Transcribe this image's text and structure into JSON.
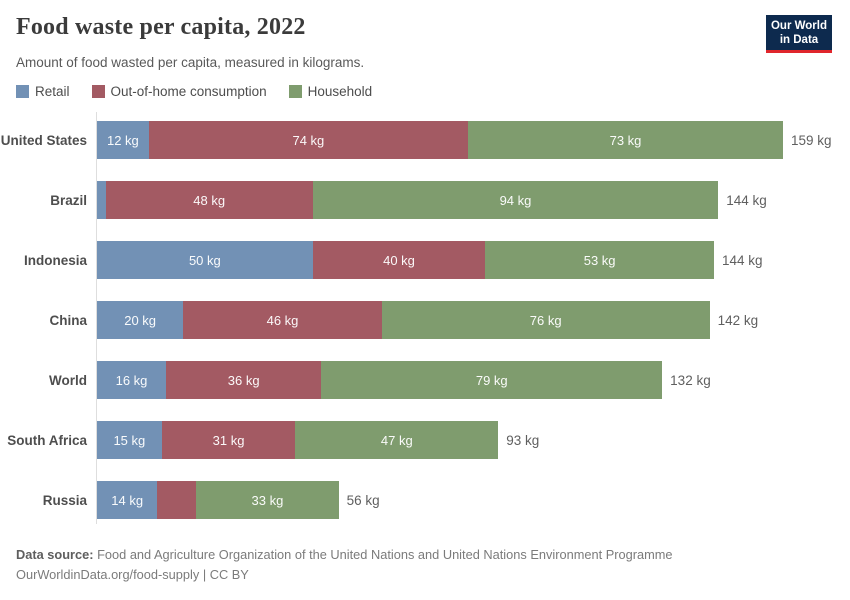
{
  "header": {
    "title": "Food waste per capita, 2022",
    "subtitle": "Amount of food wasted per capita, measured in kilograms."
  },
  "logo": {
    "line1": "Our World",
    "line2": "in Data"
  },
  "colors": {
    "retail": "#7291b5",
    "out_of_home": "#a35a63",
    "household": "#7f9c6e",
    "logo_bg": "#0d2a4e",
    "logo_accent": "#e0262c"
  },
  "chart_data": {
    "type": "bar",
    "orientation": "horizontal",
    "stacked": true,
    "unit": "kg",
    "xlim": [
      0,
      159
    ],
    "grid": false,
    "legend_position": "top",
    "categories": [
      "United States",
      "Brazil",
      "Indonesia",
      "China",
      "World",
      "South Africa",
      "Russia"
    ],
    "series": [
      {
        "name": "Retail",
        "color": "#7291b5",
        "values": [
          12,
          2,
          50,
          20,
          16,
          15,
          14
        ],
        "labels": [
          "12 kg",
          "",
          "50 kg",
          "20 kg",
          "16 kg",
          "15 kg",
          "14 kg"
        ]
      },
      {
        "name": "Out-of-home consumption",
        "color": "#a35a63",
        "values": [
          74,
          48,
          40,
          46,
          36,
          31,
          9
        ],
        "labels": [
          "74 kg",
          "48 kg",
          "40 kg",
          "46 kg",
          "36 kg",
          "31 kg",
          ""
        ]
      },
      {
        "name": "Household",
        "color": "#7f9c6e",
        "values": [
          73,
          94,
          53,
          76,
          79,
          47,
          33
        ],
        "labels": [
          "73 kg",
          "94 kg",
          "53 kg",
          "76 kg",
          "79 kg",
          "47 kg",
          "33 kg"
        ]
      }
    ],
    "totals": [
      "159 kg",
      "144 kg",
      "144 kg",
      "142 kg",
      "132 kg",
      "93 kg",
      "56 kg"
    ]
  },
  "footer": {
    "source_label": "Data source:",
    "source_text": "Food and Agriculture Organization of the United Nations and United Nations Environment Programme",
    "link": "OurWorldinData.org/food-supply",
    "separator": " | ",
    "license": "CC BY"
  }
}
